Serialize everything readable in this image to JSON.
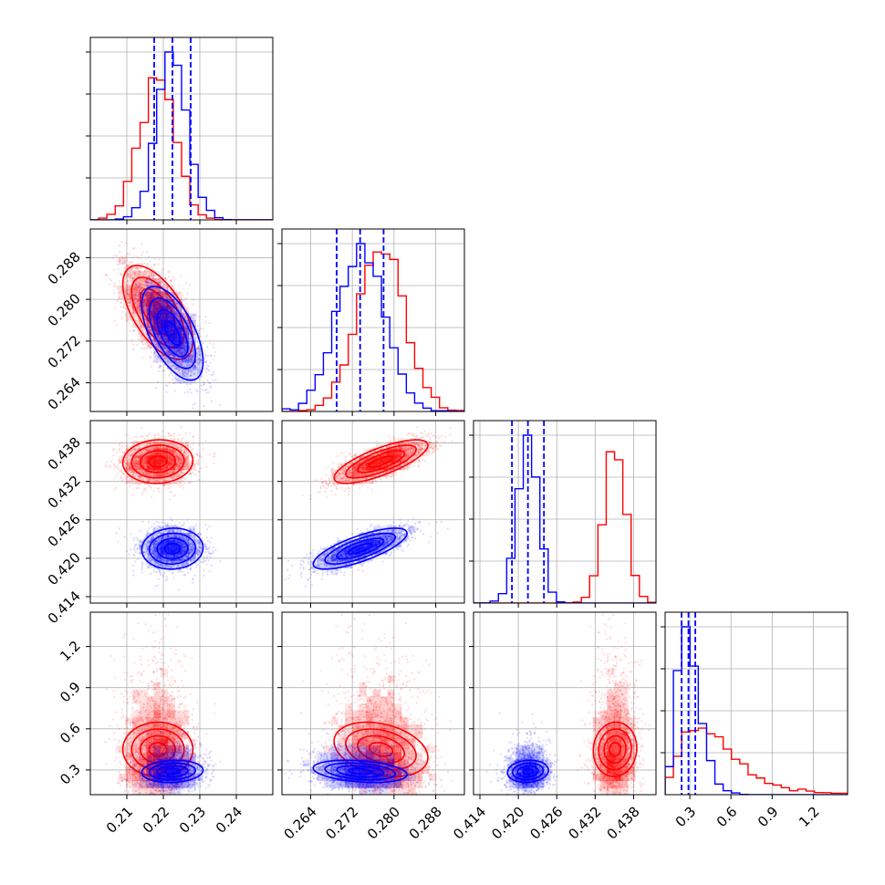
{
  "chart_data": {
    "type": "corner",
    "grid": true,
    "colors": {
      "series_a": "#ff0000",
      "series_b": "#0000ff",
      "frame": "#000000",
      "grid": "#b0b0b0"
    },
    "parameters": [
      {
        "range": [
          0.2,
          0.25
        ],
        "ticks": [
          0.21,
          0.22,
          0.23,
          0.24
        ],
        "tick_labels": [
          "0.21",
          "0.22",
          "0.23",
          "0.24"
        ]
      },
      {
        "range": [
          0.2585,
          0.2935
        ],
        "ticks": [
          0.264,
          0.272,
          0.28,
          0.288
        ],
        "tick_labels": [
          "0.264",
          "0.272",
          "0.280",
          "0.288"
        ]
      },
      {
        "range": [
          0.413,
          0.4415
        ],
        "ticks": [
          0.414,
          0.42,
          0.426,
          0.432,
          0.438
        ],
        "tick_labels": [
          "0.414",
          "0.420",
          "0.426",
          "0.432",
          "0.438"
        ]
      },
      {
        "range": [
          0.12,
          1.45
        ],
        "ticks": [
          0.3,
          0.6,
          0.9,
          1.2
        ],
        "tick_labels": [
          "0.3",
          "0.6",
          "0.9",
          "1.2"
        ]
      }
    ],
    "series": [
      {
        "color": "#ff0000",
        "mean": [
          0.2185,
          0.2775,
          0.4351,
          0.45
        ],
        "std": [
          0.0048,
          0.0045,
          0.0017,
          0.11
        ],
        "corr": [
          [
            0,
            1,
            -0.6
          ],
          [
            0,
            2,
            0.05
          ],
          [
            0,
            3,
            0.0
          ],
          [
            1,
            2,
            0.75
          ],
          [
            1,
            3,
            -0.3
          ],
          [
            2,
            3,
            0.05
          ]
        ]
      },
      {
        "color": "#0000ff",
        "mean": [
          0.2225,
          0.2735,
          0.4215,
          0.29
        ],
        "std": [
          0.0042,
          0.0045,
          0.0016,
          0.045
        ],
        "corr": [
          [
            0,
            1,
            -0.6
          ],
          [
            0,
            2,
            0.05
          ],
          [
            0,
            3,
            0.1
          ],
          [
            1,
            2,
            0.75
          ],
          [
            1,
            3,
            -0.3
          ],
          [
            2,
            3,
            0.1
          ]
        ]
      }
    ],
    "quantile_lines_color": "#0000ff",
    "quantile_lines": [
      [
        0.2175,
        0.2225,
        0.2275
      ],
      [
        0.269,
        0.2735,
        0.278
      ],
      [
        0.419,
        0.4215,
        0.424
      ],
      [
        0.24,
        0.29,
        0.34
      ]
    ]
  }
}
